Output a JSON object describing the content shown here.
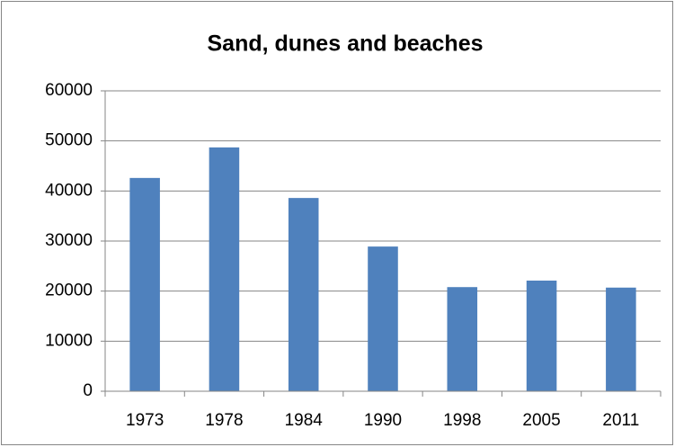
{
  "chart_data": {
    "type": "bar",
    "title": "Sand, dunes and beaches",
    "categories": [
      "1973",
      "1978",
      "1984",
      "1990",
      "1998",
      "2005",
      "2011"
    ],
    "values": [
      42600,
      48700,
      38600,
      28900,
      20800,
      22100,
      20700
    ],
    "color": "#4f81bd",
    "ylim": [
      0,
      60000
    ],
    "yticks": [
      0,
      10000,
      20000,
      30000,
      40000,
      50000,
      60000
    ],
    "grid": true
  }
}
